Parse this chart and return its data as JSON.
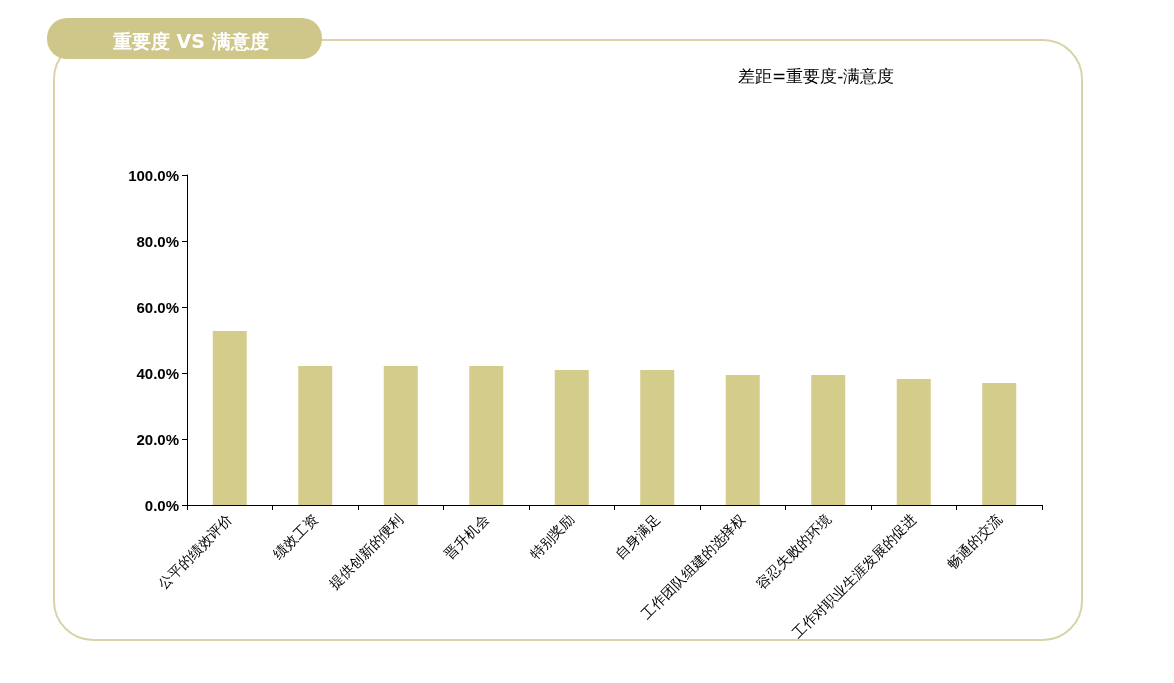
{
  "chart_data": {
    "type": "bar",
    "title": "重要度 VS 满意度",
    "subtitle": "差距=重要度-满意度",
    "categories": [
      "公平的绩效评价",
      "绩效工资",
      "提供创新的便利",
      "晋升机会",
      "特别奖励",
      "自身满足",
      "工作团队组建的选择权",
      "容忍失败的环境",
      "工作对职业生涯发展的促进",
      "畅通的交流"
    ],
    "values": [
      52.7,
      42.1,
      42.1,
      42.1,
      40.9,
      40.9,
      39.4,
      39.4,
      38.2,
      37.0
    ],
    "color": "#d4cc8a",
    "ylim": [
      0,
      100
    ],
    "yticks": [
      {
        "value": 0,
        "label": "0.0%"
      },
      {
        "value": 20,
        "label": "20.0%"
      },
      {
        "value": 40,
        "label": "40.0%"
      },
      {
        "value": 60,
        "label": "60.0%"
      },
      {
        "value": 80,
        "label": "80.0%"
      },
      {
        "value": 100,
        "label": "100.0%"
      }
    ]
  }
}
